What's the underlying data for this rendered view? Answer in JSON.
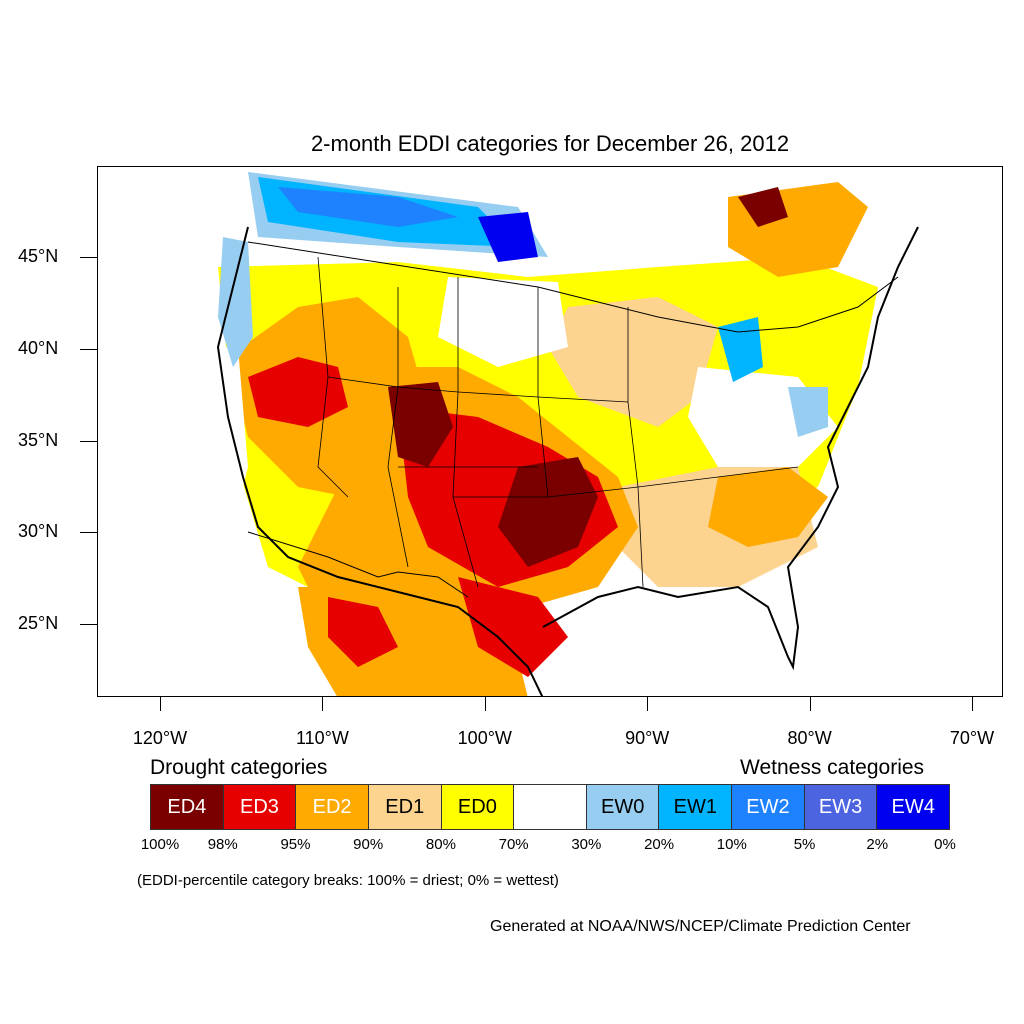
{
  "title": "2-month EDDI categories for December 26, 2012",
  "lat_labels": [
    {
      "text": "45°N",
      "lat": 45
    },
    {
      "text": "40°N",
      "lat": 40
    },
    {
      "text": "35°N",
      "lat": 35
    },
    {
      "text": "30°N",
      "lat": 30
    },
    {
      "text": "25°N",
      "lat": 25
    }
  ],
  "lon_labels": [
    {
      "text": "120°W",
      "lon": -120
    },
    {
      "text": "110°W",
      "lon": -110
    },
    {
      "text": "100°W",
      "lon": -100
    },
    {
      "text": "90°W",
      "lon": -90
    },
    {
      "text": "80°W",
      "lon": -80
    },
    {
      "text": "70°W",
      "lon": -70
    }
  ],
  "legend": {
    "drought_heading": "Drought categories",
    "wetness_heading": "Wetness categories",
    "categories": [
      {
        "label": "ED4",
        "color": "#7a0000",
        "text_color": "#ffffff"
      },
      {
        "label": "ED3",
        "color": "#e60000",
        "text_color": "#ffffff"
      },
      {
        "label": "ED2",
        "color": "#ffaa00",
        "text_color": "#ffffff"
      },
      {
        "label": "ED1",
        "color": "#fcd38f",
        "text_color": "#000000"
      },
      {
        "label": "ED0",
        "color": "#ffff00",
        "text_color": "#000000"
      },
      {
        "label": "",
        "color": "#ffffff",
        "text_color": "#000000"
      },
      {
        "label": "EW0",
        "color": "#96cdf0",
        "text_color": "#000000"
      },
      {
        "label": "EW1",
        "color": "#00b4ff",
        "text_color": "#000000"
      },
      {
        "label": "EW2",
        "color": "#1e82ff",
        "text_color": "#ffffff"
      },
      {
        "label": "EW3",
        "color": "#4d64e1",
        "text_color": "#ffffff"
      },
      {
        "label": "EW4",
        "color": "#0000f0",
        "text_color": "#ffffff"
      }
    ],
    "percentiles": [
      "100%",
      "98%",
      "95%",
      "90%",
      "80%",
      "70%",
      "30%",
      "20%",
      "10%",
      "5%",
      "2%",
      "0%"
    ],
    "note": "(EDDI-percentile category breaks: 100% = driest; 0% = wettest)"
  },
  "credit": "Generated at NOAA/NWS/NCEP/Climate Prediction Center"
}
